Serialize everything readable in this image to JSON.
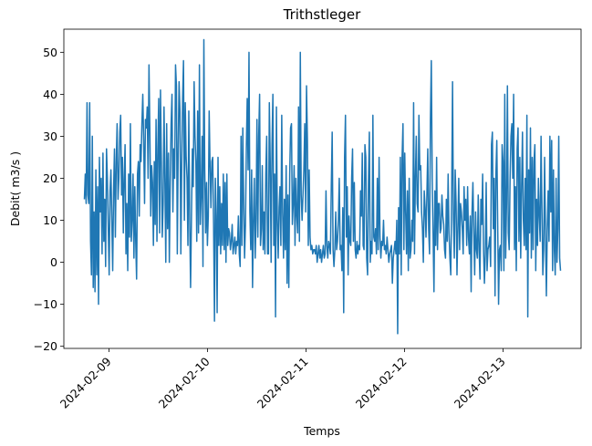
{
  "chart_data": {
    "type": "line",
    "title": "Trithstleger",
    "xlabel": "Temps",
    "ylabel": "Debit( m3/s )",
    "x_start": "2024-02-08 18:00",
    "x_end": "2024-02-13 14:00",
    "xlim": [
      "2024-02-08 13:00",
      "2024-02-13 19:00"
    ],
    "ylim": [
      -20.5,
      55.5
    ],
    "x_ticks": [
      "2024-02-09",
      "2024-02-10",
      "2024-02-11",
      "2024-02-12",
      "2024-02-13"
    ],
    "y_ticks": [
      -20,
      -10,
      0,
      10,
      20,
      30,
      40,
      50
    ],
    "grid": false,
    "series": [
      {
        "color": "#1f77b4",
        "values": [
          15,
          21,
          14,
          38,
          16,
          14,
          38,
          5,
          -3,
          30,
          -6,
          12,
          -7,
          22,
          -3,
          18,
          -10,
          25,
          12,
          20,
          2,
          26,
          5,
          15,
          -1,
          27,
          20,
          8,
          -3,
          17,
          22,
          10,
          -2,
          17,
          27,
          6,
          24,
          33,
          15,
          20,
          31,
          35,
          16,
          25,
          7,
          20,
          28,
          2,
          14,
          -2,
          21,
          6,
          33,
          5,
          10,
          21,
          1,
          18,
          5,
          -4,
          21,
          24,
          11,
          28,
          24,
          33,
          40,
          29,
          14,
          34,
          32,
          37,
          20,
          47,
          31,
          11,
          23,
          19,
          4,
          24,
          9,
          34,
          5,
          27,
          39,
          7,
          41,
          24,
          6,
          14,
          37,
          19,
          0,
          33,
          8,
          26,
          0,
          19,
          33,
          40,
          12,
          27,
          20,
          47,
          42,
          2,
          27,
          43,
          36,
          2,
          23,
          39,
          48,
          10,
          38,
          25,
          20,
          4,
          36,
          10,
          -6,
          11,
          27,
          18,
          43,
          30,
          24,
          5,
          36,
          7,
          47,
          9,
          16,
          30,
          -1,
          53,
          22,
          7,
          19,
          4,
          11,
          36,
          23,
          13,
          24,
          25,
          9,
          -14,
          20,
          11,
          -12,
          25,
          4,
          18,
          2,
          14,
          4,
          21,
          3,
          19,
          0,
          21,
          4,
          8,
          7,
          3,
          5,
          9,
          2,
          4,
          6,
          2,
          5,
          4,
          11,
          2,
          -1,
          30,
          4,
          32,
          14,
          1,
          9,
          27,
          39,
          22,
          50,
          12,
          3,
          22,
          -6,
          10,
          20,
          1,
          10,
          34,
          6,
          30,
          40,
          4,
          8,
          23,
          3,
          12,
          2,
          21,
          30,
          2,
          2,
          38,
          24,
          0,
          28,
          40,
          4,
          21,
          -13,
          37,
          10,
          1,
          13,
          18,
          4,
          35,
          12,
          1,
          15,
          3,
          23,
          -5,
          16,
          -6,
          21,
          32,
          33,
          9,
          14,
          23,
          4,
          20,
          11,
          7,
          37,
          5,
          50,
          16,
          10,
          16,
          22,
          33,
          12,
          42,
          29,
          4,
          22,
          6,
          3,
          4,
          2,
          3,
          3,
          2,
          4,
          0,
          2,
          4,
          1,
          3,
          0,
          2,
          4,
          1,
          2,
          17,
          4,
          1,
          5,
          4,
          2,
          18,
          31,
          3,
          -1,
          3,
          12,
          3,
          5,
          10,
          20,
          3,
          4,
          -2,
          13,
          -12,
          25,
          35,
          6,
          18,
          -3,
          11,
          5,
          4,
          20,
          27,
          5,
          19,
          3,
          1,
          5,
          2,
          4,
          3,
          17,
          11,
          26,
          4,
          3,
          28,
          25,
          1,
          -3,
          19,
          31,
          0,
          5,
          2,
          35,
          6,
          5,
          8,
          2,
          20,
          3,
          25,
          6,
          1,
          5,
          4,
          10,
          3,
          4,
          2,
          6,
          3,
          0,
          2,
          3,
          4,
          -5,
          1,
          3,
          5,
          2,
          10,
          -17,
          13,
          2,
          25,
          -3,
          25,
          33,
          3,
          26,
          12,
          2,
          17,
          -2,
          20,
          1,
          3,
          10,
          5,
          38,
          2,
          20,
          30,
          14,
          12,
          35,
          22,
          23,
          12,
          8,
          0,
          17,
          13,
          6,
          16,
          27,
          8,
          2,
          34,
          48,
          20,
          7,
          -7,
          17,
          4,
          25,
          3,
          14,
          14,
          7,
          8,
          16,
          11,
          9,
          3,
          1,
          15,
          5,
          21,
          7,
          1,
          -3,
          16,
          43,
          10,
          1,
          22,
          14,
          -3,
          8,
          20,
          3,
          14,
          12,
          8,
          2,
          18,
          10,
          15,
          4,
          18,
          6,
          2,
          11,
          -7,
          12,
          19,
          7,
          -3,
          12,
          3,
          1,
          16,
          3,
          -4,
          15,
          9,
          21,
          3,
          -5,
          2,
          19,
          -2,
          3,
          4,
          6,
          -1,
          28,
          31,
          8,
          20,
          -8,
          21,
          29,
          9,
          -10,
          3,
          4,
          -2,
          28,
          24,
          -2,
          40,
          1,
          14,
          42,
          7,
          3,
          20,
          30,
          33,
          20,
          40,
          3,
          18,
          -2,
          27,
          32,
          5,
          25,
          1,
          18,
          31,
          10,
          4,
          20,
          3,
          35,
          -13,
          22,
          7,
          32,
          1,
          25,
          3,
          24,
          28,
          -2,
          15,
          4,
          20,
          11,
          5,
          30,
          13,
          -3,
          3,
          25,
          7,
          -8,
          8,
          17,
          5,
          30,
          12,
          29,
          -2,
          22,
          3,
          -3,
          20,
          0,
          8,
          30,
          1,
          -2
        ]
      }
    ]
  }
}
